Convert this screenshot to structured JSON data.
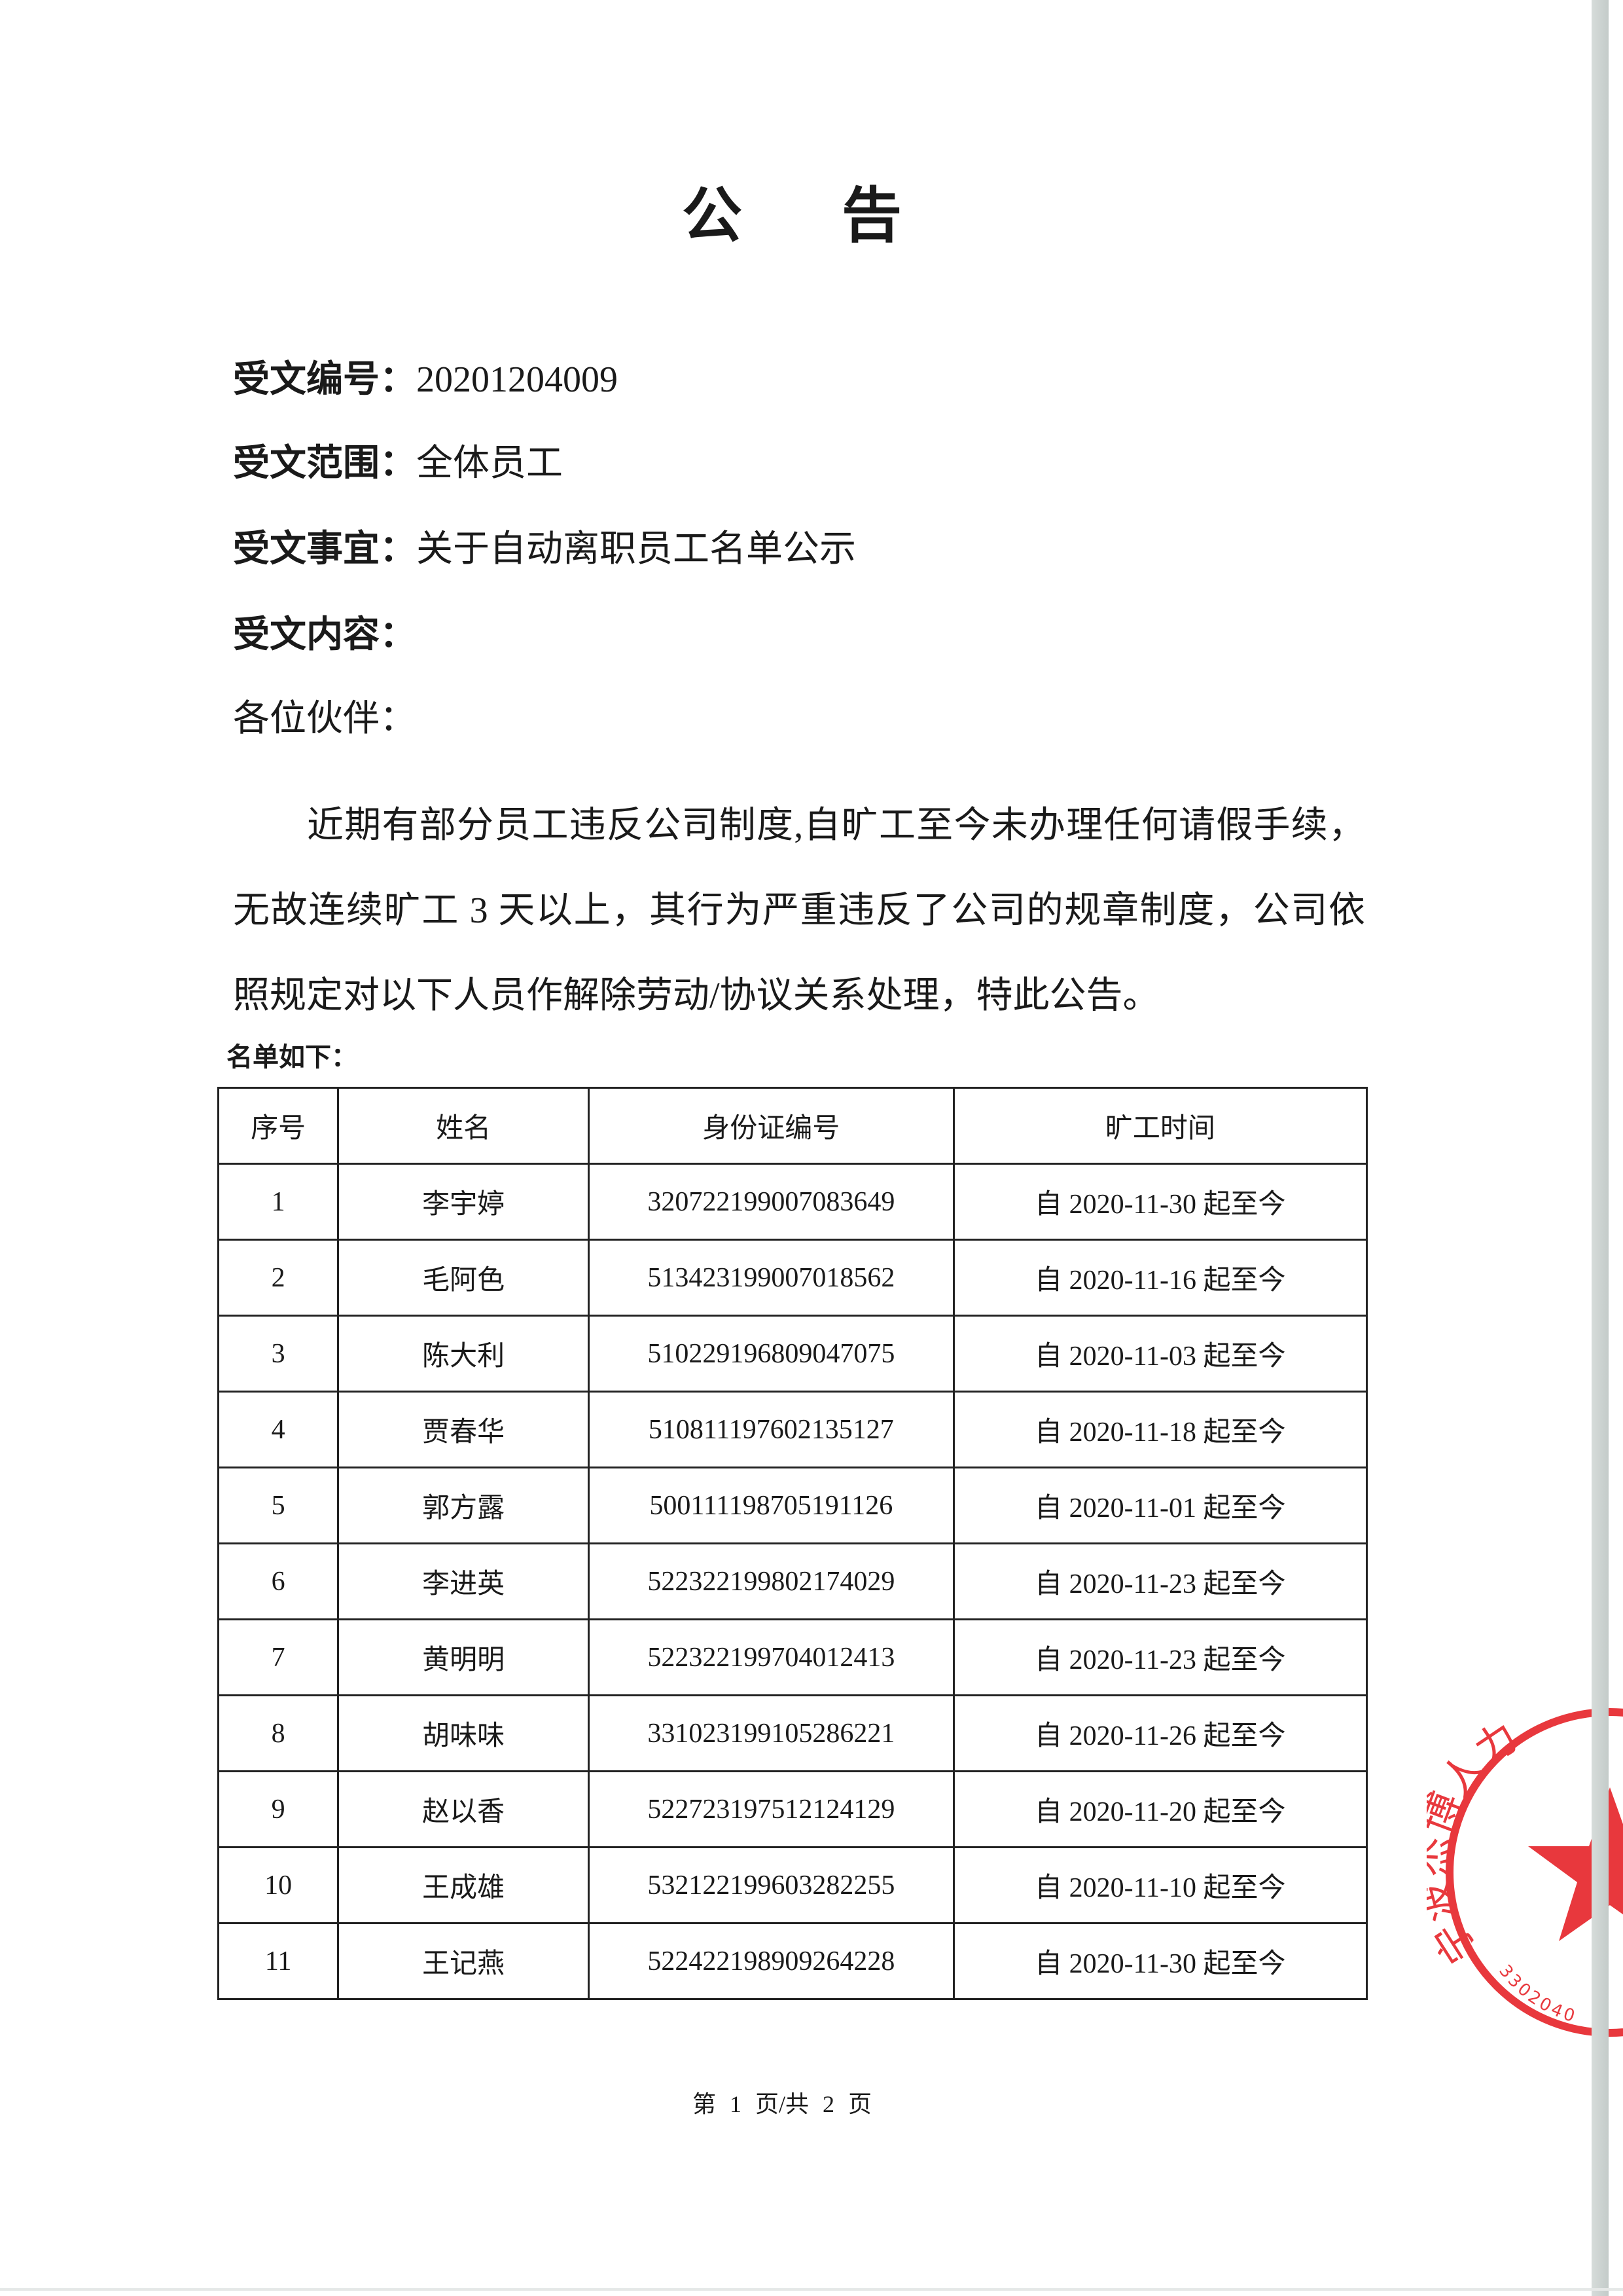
{
  "title": "公 告",
  "meta": [
    {
      "label": "受文编号：",
      "value": "20201204009"
    },
    {
      "label": "受文范围：",
      "value": "全体员工"
    },
    {
      "label": "受文事宜：",
      "value": "关于自动离职员工名单公示"
    },
    {
      "label": "受文内容：",
      "value": ""
    }
  ],
  "salutation": "各位伙伴：",
  "body": "近期有部分员工违反公司制度,自旷工至今未办理任何请假手续，无故连续旷工 3 天以上，其行为严重违反了公司的规章制度，公司依照规定对以下人员作解除劳动/协议关系处理，特此公告。",
  "list_label": "名单如下：",
  "table": {
    "headers": [
      "序号",
      "姓名",
      "身份证编号",
      "旷工时间"
    ],
    "rows": [
      [
        "1",
        "李宇婷",
        "320722199007083649",
        "自 2020-11-30 起至今"
      ],
      [
        "2",
        "毛阿色",
        "513423199007018562",
        "自 2020-11-16 起至今"
      ],
      [
        "3",
        "陈大利",
        "510229196809047075",
        "自 2020-11-03 起至今"
      ],
      [
        "4",
        "贾春华",
        "510811197602135127",
        "自 2020-11-18 起至今"
      ],
      [
        "5",
        "郭方露",
        "500111198705191126",
        "自 2020-11-01 起至今"
      ],
      [
        "6",
        "李进英",
        "522322199802174029",
        "自 2020-11-23 起至今"
      ],
      [
        "7",
        "黄明明",
        "522322199704012413",
        "自 2020-11-23 起至今"
      ],
      [
        "8",
        "胡味味",
        "331023199105286221",
        "自 2020-11-26 起至今"
      ],
      [
        "9",
        "赵以香",
        "522723197512124129",
        "自 2020-11-20 起至今"
      ],
      [
        "10",
        "王成雄",
        "532122199603282255",
        "自 2020-11-10 起至今"
      ],
      [
        "11",
        "王记燕",
        "522422198909264228",
        "自 2020-11-30 起至今"
      ]
    ]
  },
  "footer": "第 1 页/共 2 页",
  "stamp": {
    "text": "宁波杰博人力",
    "code": "3302040",
    "color": "#e8383d"
  }
}
